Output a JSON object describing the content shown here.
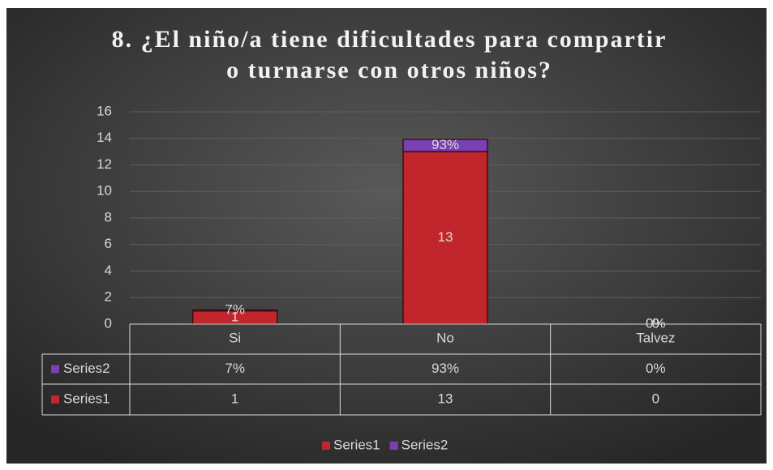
{
  "chart_data": {
    "type": "bar",
    "stacked": true,
    "title": "8. ¿El niño/a tiene dificultades para compartir o turnarse con otros niños?",
    "categories": [
      "Si",
      "No",
      "Talvez"
    ],
    "series": [
      {
        "name": "Series1",
        "color": "#c0262c",
        "values": [
          1,
          13,
          0
        ]
      },
      {
        "name": "Series2",
        "color": "#7a3fb0",
        "values": [
          0.07,
          0.93,
          0
        ],
        "value_labels": [
          "7%",
          "93%",
          "0%"
        ]
      }
    ],
    "ylim": [
      0,
      16
    ],
    "yticks": [
      0,
      2,
      4,
      6,
      8,
      10,
      12,
      14,
      16
    ],
    "grid": true,
    "legend": "bottom",
    "data_table": true
  }
}
